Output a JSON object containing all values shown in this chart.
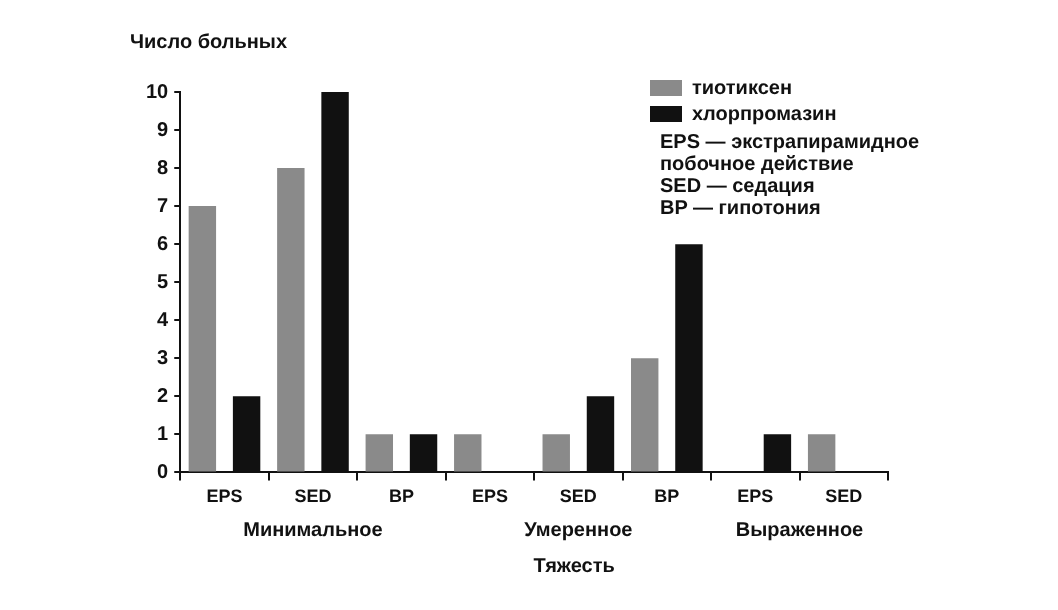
{
  "chart_data": {
    "type": "bar",
    "ylabel": "Число больных",
    "xlabel": "Тяжесть",
    "categories": [
      "EPS",
      "SED",
      "BP",
      "EPS",
      "SED",
      "BP",
      "EPS",
      "SED"
    ],
    "series": [
      {
        "name": "тиотиксен",
        "color": "#8a8a8a",
        "values": [
          7,
          8,
          1,
          1,
          1,
          3,
          0,
          1
        ]
      },
      {
        "name": "хлорпромазин",
        "color": "#111111",
        "values": [
          2,
          10,
          1,
          0,
          2,
          6,
          1,
          0
        ]
      }
    ],
    "ylim": [
      0,
      10
    ],
    "yticks": [
      0,
      1,
      2,
      3,
      4,
      5,
      6,
      7,
      8,
      9,
      10
    ],
    "grid": false,
    "legend": "top right",
    "annotations": [
      "Минимальное",
      "Умеренное",
      "Выраженное",
      "EPS — экстрапирамидное побочное действие",
      "SED — седация",
      "BP — гипотония"
    ]
  }
}
